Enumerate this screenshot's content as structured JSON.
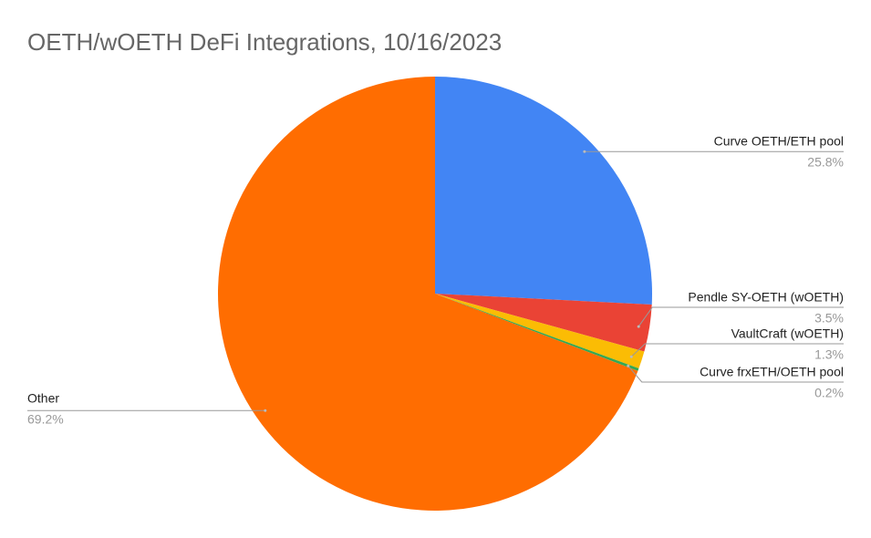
{
  "chart_data": {
    "type": "pie",
    "title": "OETH/wOETH DeFi Integrations, 10/16/2023",
    "categories": [
      "Curve OETH/ETH pool",
      "Pendle SY-OETH (wOETH)",
      "VaultCraft (wOETH)",
      "Curve frxETH/OETH pool",
      "Other"
    ],
    "values": [
      25.8,
      3.5,
      1.3,
      0.2,
      69.2
    ],
    "value_labels": [
      "25.8%",
      "3.5%",
      "1.3%",
      "0.2%",
      "69.2%"
    ],
    "colors": [
      "#4285f4",
      "#ea4335",
      "#fbbc04",
      "#34a853",
      "#ff6d01"
    ]
  }
}
